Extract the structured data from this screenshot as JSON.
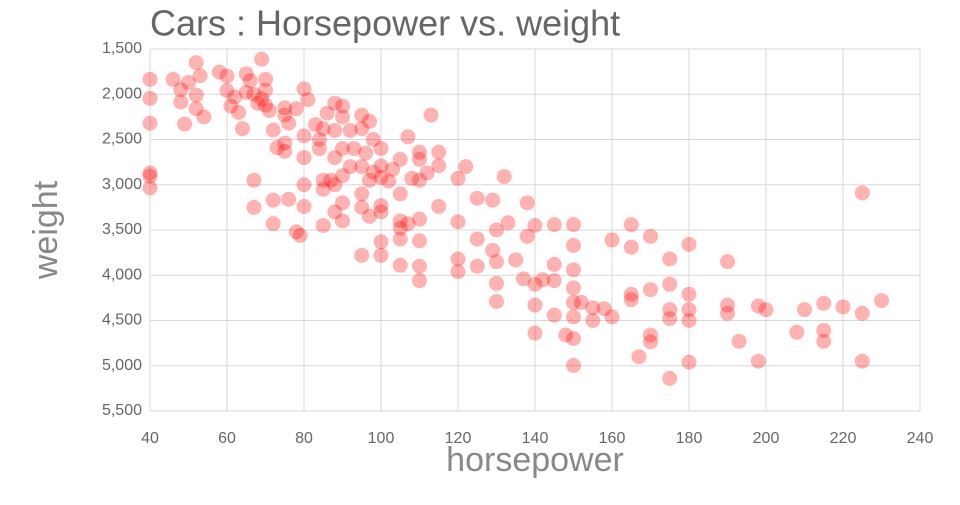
{
  "chart_data": {
    "type": "scatter",
    "title": "Cars : Horsepower vs. weight",
    "x_label": "horsepower",
    "y_label": "weight",
    "color": "#ff0000",
    "grid": true,
    "xlim": [
      40,
      240
    ],
    "xticks": [
      40,
      60,
      80,
      100,
      120,
      140,
      160,
      180,
      200,
      220,
      240
    ],
    "ylim": [
      5500,
      1500
    ],
    "yticks": [
      {
        "value": 1500,
        "label": "1,500"
      },
      {
        "value": 2000,
        "label": "2,000"
      },
      {
        "value": 2500,
        "label": "2,500"
      },
      {
        "value": 3000,
        "label": "3,000"
      },
      {
        "value": 3500,
        "label": "3,500"
      },
      {
        "value": 4000,
        "label": "4,000"
      },
      {
        "value": 4500,
        "label": "4,500"
      },
      {
        "value": 5000,
        "label": "5,000"
      },
      {
        "value": 5500,
        "label": "5,500"
      }
    ],
    "x": [
      40,
      40,
      40,
      40,
      40,
      40,
      46,
      48,
      48,
      49,
      50,
      52,
      52,
      53,
      52,
      54,
      58,
      60,
      60,
      61,
      62,
      63,
      64,
      65,
      65,
      66,
      67,
      67,
      67,
      68,
      69,
      69,
      70,
      70,
      70,
      71,
      72,
      72,
      72,
      73,
      75,
      75,
      75,
      75,
      76,
      76,
      78,
      79,
      78,
      80,
      80,
      80,
      81,
      80,
      80,
      83,
      84,
      84,
      85,
      85,
      85,
      85,
      86,
      87,
      88,
      88,
      88,
      88,
      88,
      90,
      90,
      90,
      90,
      90,
      90,
      92,
      92,
      93,
      95,
      95,
      95,
      95,
      95,
      95,
      96,
      97,
      97,
      97,
      98,
      98,
      100,
      100,
      100,
      100,
      100,
      100,
      100,
      102,
      103,
      105,
      105,
      105,
      105,
      105,
      105,
      107,
      107,
      108,
      110,
      110,
      110,
      110,
      110,
      110,
      110,
      112,
      113,
      115,
      115,
      115,
      120,
      120,
      120,
      120,
      122,
      125,
      125,
      125,
      129,
      129,
      130,
      130,
      130,
      130,
      132,
      133,
      135,
      137,
      138,
      138,
      140,
      140,
      140,
      140,
      142,
      145,
      145,
      145,
      145,
      148,
      150,
      150,
      150,
      150,
      150,
      150,
      150,
      150,
      152,
      155,
      155,
      158,
      160,
      160,
      165,
      165,
      165,
      165,
      167,
      170,
      170,
      170,
      170,
      175,
      175,
      175,
      175,
      175,
      180,
      180,
      180,
      180,
      180,
      190,
      190,
      190,
      193,
      198,
      198,
      200,
      208,
      210,
      215,
      215,
      215,
      220,
      225,
      225,
      225,
      230
    ],
    "values": [
      1835,
      2045,
      2320,
      2870,
      2905,
      3035,
      1835,
      1950,
      2085,
      2330,
      1870,
      1650,
      2010,
      1795,
      2160,
      2250,
      1755,
      1800,
      1960,
      2130,
      2030,
      2200,
      2380,
      1775,
      1980,
      1850,
      2000,
      2950,
      3250,
      2100,
      1613,
      2050,
      1955,
      2120,
      1835,
      2180,
      2395,
      3170,
      3430,
      2590,
      2150,
      2230,
      2540,
      2630,
      2320,
      3160,
      3520,
      3560,
      2160,
      1940,
      2460,
      2700,
      2060,
      3000,
      3240,
      2335,
      2500,
      2600,
      2380,
      2950,
      3050,
      3450,
      2210,
      2950,
      2100,
      2400,
      2700,
      3000,
      3300,
      2130,
      2250,
      2600,
      2900,
      3200,
      3400,
      2400,
      2800,
      2600,
      2230,
      2380,
      2800,
      3100,
      3250,
      3780,
      2650,
      2300,
      2950,
      3350,
      2500,
      2860,
      2600,
      2790,
      2920,
      3230,
      3300,
      3630,
      3780,
      2960,
      2830,
      2720,
      3100,
      3400,
      3480,
      3600,
      3890,
      2470,
      3430,
      2930,
      2640,
      2720,
      2950,
      3380,
      3620,
      3900,
      4060,
      2870,
      2230,
      2640,
      2790,
      3240,
      2930,
      3410,
      3820,
      3960,
      2800,
      3150,
      3600,
      3900,
      3170,
      3725,
      3500,
      3850,
      4090,
      4290,
      2910,
      3420,
      3830,
      4040,
      3200,
      3570,
      3450,
      4100,
      4330,
      4640,
      4050,
      3440,
      3880,
      4060,
      4440,
      4660,
      3440,
      3670,
      3940,
      4140,
      4300,
      4460,
      4700,
      4997,
      4300,
      4360,
      4500,
      4370,
      3610,
      4460,
      3440,
      3690,
      4210,
      4270,
      4900,
      3570,
      4160,
      4660,
      4735,
      3820,
      4100,
      4380,
      4480,
      5140,
      3660,
      4210,
      4380,
      4500,
      4960,
      3850,
      4330,
      4420,
      4730,
      4340,
      4950,
      4380,
      4630,
      4380,
      4310,
      4610,
      4730,
      4350,
      3090,
      4420,
      4950,
      4280
    ]
  }
}
